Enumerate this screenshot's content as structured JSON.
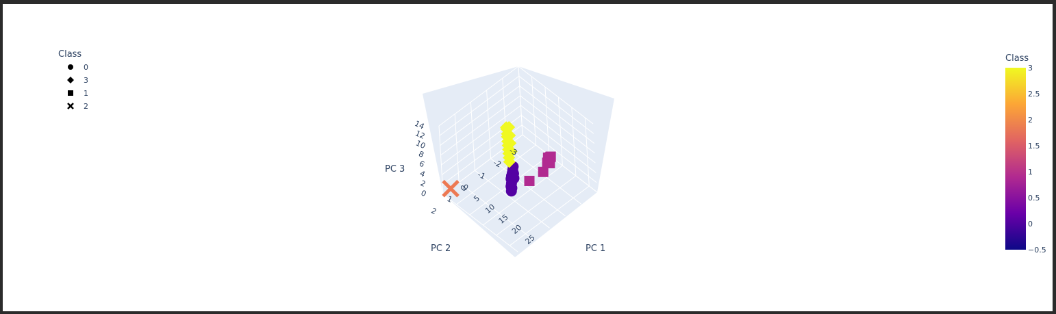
{
  "chart_data": {
    "type": "scatter3d",
    "title": "",
    "axes": {
      "x": {
        "label": "PC 1",
        "ticks": [
          "0",
          "5",
          "10",
          "15",
          "20",
          "25"
        ]
      },
      "y": {
        "label": "PC 2",
        "ticks": [
          "-3",
          "-2",
          "-1",
          "0",
          "1",
          "2"
        ]
      },
      "z": {
        "label": "PC 3",
        "ticks": [
          "0",
          "2",
          "4",
          "6",
          "8",
          "10",
          "12",
          "14"
        ]
      }
    },
    "legend": {
      "title": "Class",
      "placement": "top-left",
      "entries": [
        {
          "label": "0",
          "symbol": "circle"
        },
        {
          "label": "3",
          "symbol": "diamond"
        },
        {
          "label": "1",
          "symbol": "square"
        },
        {
          "label": "2",
          "symbol": "x"
        }
      ]
    },
    "colorbar": {
      "title": "Class",
      "placement": "right",
      "range": [
        -0.5,
        3
      ],
      "ticks": [
        "3",
        "2.5",
        "2",
        "1.5",
        "1",
        "0.5",
        "0",
        "−0.5"
      ],
      "colors": [
        "#0d0887",
        "#6a00a8",
        "#b12a90",
        "#e16462",
        "#fca636",
        "#f0f921"
      ]
    },
    "series": [
      {
        "name": "0",
        "symbol": "circle",
        "color": "#5402a3",
        "points": [
          [
            13.2,
            -0.3,
            5.6
          ],
          [
            13.6,
            -0.2,
            5.3
          ],
          [
            14.0,
            -0.1,
            5.1
          ],
          [
            14.3,
            0.0,
            4.9
          ],
          [
            14.7,
            0.1,
            4.7
          ],
          [
            15.0,
            0.1,
            4.5
          ],
          [
            15.4,
            0.2,
            4.3
          ],
          [
            15.8,
            0.3,
            4.1
          ],
          [
            16.1,
            0.3,
            3.9
          ],
          [
            16.5,
            0.4,
            3.7
          ],
          [
            14.5,
            -0.1,
            5.2
          ],
          [
            15.2,
            0.0,
            4.8
          ]
        ]
      },
      {
        "name": "3",
        "symbol": "diamond",
        "color": "#f0f921",
        "points": [
          [
            5.5,
            -1.2,
            8.2
          ],
          [
            6.2,
            -1.1,
            8.4
          ],
          [
            7.0,
            -1.0,
            8.0
          ],
          [
            7.6,
            -0.9,
            7.9
          ],
          [
            8.3,
            -0.8,
            7.5
          ],
          [
            9.0,
            -0.7,
            7.2
          ],
          [
            9.7,
            -0.6,
            6.9
          ],
          [
            10.4,
            -0.5,
            6.6
          ],
          [
            11.1,
            -0.4,
            6.3
          ],
          [
            11.8,
            -0.3,
            6.0
          ],
          [
            6.6,
            -1.2,
            8.7
          ],
          [
            8.0,
            -1.0,
            8.1
          ],
          [
            9.4,
            -0.8,
            7.6
          ],
          [
            10.9,
            -0.6,
            7.0
          ]
        ]
      },
      {
        "name": "1",
        "symbol": "square",
        "color": "#b12a90",
        "points": [
          [
            27.8,
            -0.2,
            13.8
          ],
          [
            27.3,
            -0.4,
            13.2
          ],
          [
            26.9,
            -0.5,
            12.9
          ],
          [
            27.7,
            -0.3,
            12.4
          ],
          [
            28.0,
            -0.1,
            13.1
          ],
          [
            27.5,
            0.1,
            11.5
          ],
          [
            22.5,
            0.2,
            7.8
          ]
        ]
      },
      {
        "name": "2",
        "symbol": "x",
        "color": "#ed7953",
        "points": [
          [
            0.5,
            1.6,
            0.4
          ]
        ]
      }
    ]
  }
}
